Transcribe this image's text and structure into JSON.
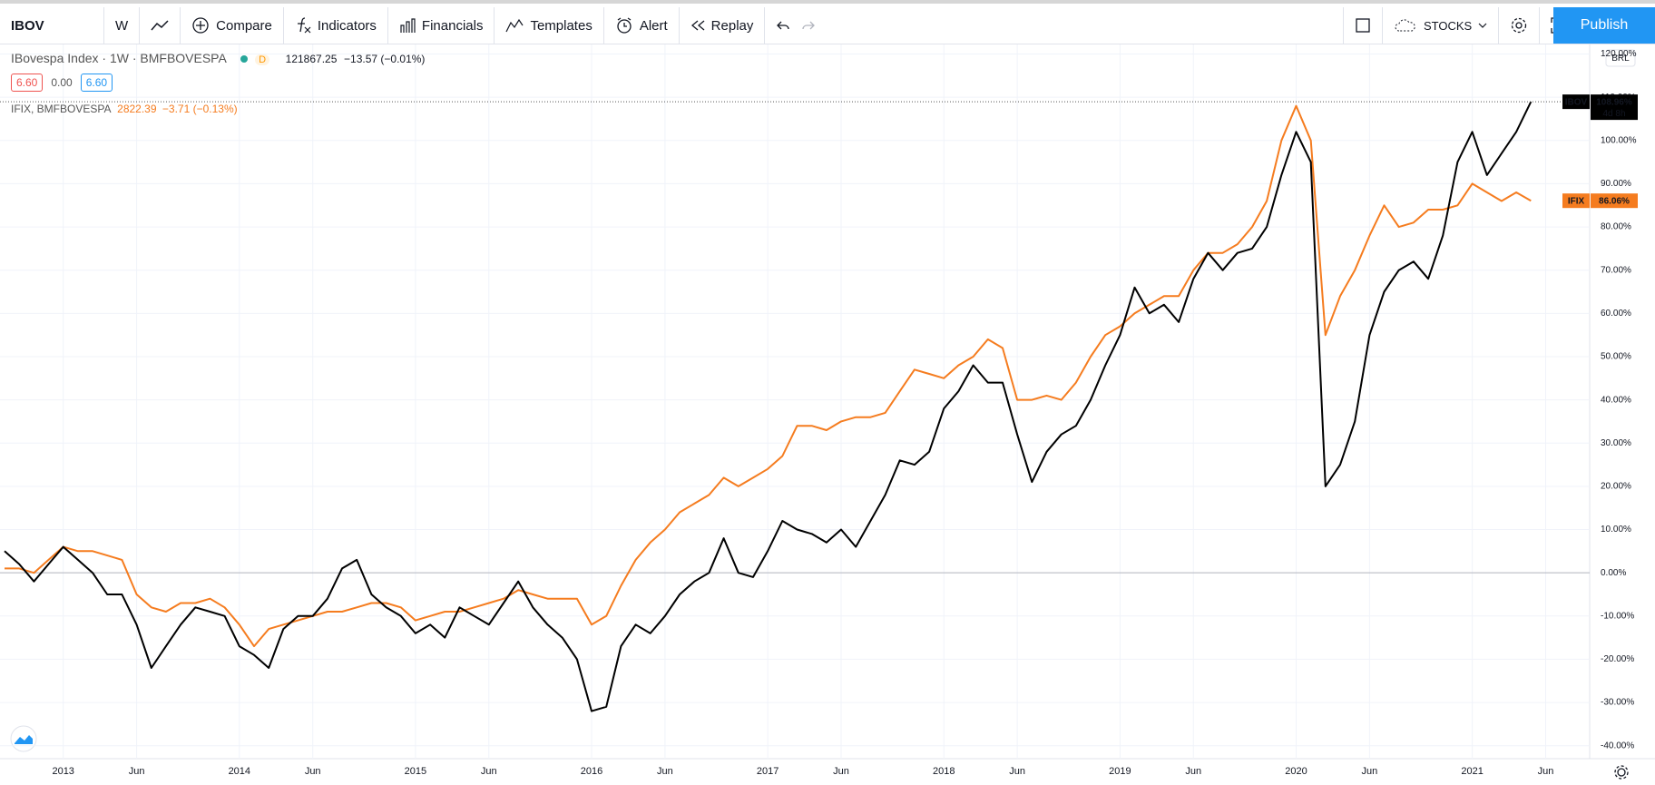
{
  "toolbar": {
    "symbol": "IBOV",
    "interval": "W",
    "compare": "Compare",
    "indicators": "Indicators",
    "financials": "Financials",
    "templates": "Templates",
    "alert": "Alert",
    "replay": "Replay",
    "layout": "STOCKS",
    "publish": "Publish"
  },
  "legend": {
    "main": {
      "name": "IBovespa Index · 1W · BMFBOVESPA",
      "flag": "D",
      "price": "121867.25",
      "change": "−13.57 (−0.01%)",
      "sell": "6.60",
      "spread": "0.00",
      "buy": "6.60"
    },
    "compare": {
      "name": "IFIX, BMFBOVESPA",
      "price": "2822.39",
      "change": "−3.71 (−0.13%)"
    }
  },
  "price_scale": {
    "currency": "BRL",
    "countdown": "4d 8h"
  },
  "chart_data": {
    "type": "line",
    "x": [
      "2012-09",
      "2012-10",
      "2012-11",
      "2012-12",
      "2013-01",
      "2013-02",
      "2013-03",
      "2013-04",
      "2013-05",
      "2013-06",
      "2013-07",
      "2013-08",
      "2013-09",
      "2013-10",
      "2013-11",
      "2013-12",
      "2014-01",
      "2014-02",
      "2014-03",
      "2014-04",
      "2014-05",
      "2014-06",
      "2014-07",
      "2014-08",
      "2014-09",
      "2014-10",
      "2014-11",
      "2014-12",
      "2015-01",
      "2015-02",
      "2015-03",
      "2015-04",
      "2015-05",
      "2015-06",
      "2015-07",
      "2015-08",
      "2015-09",
      "2015-10",
      "2015-11",
      "2015-12",
      "2016-01",
      "2016-02",
      "2016-03",
      "2016-04",
      "2016-05",
      "2016-06",
      "2016-07",
      "2016-08",
      "2016-09",
      "2016-10",
      "2016-11",
      "2016-12",
      "2017-01",
      "2017-02",
      "2017-03",
      "2017-04",
      "2017-05",
      "2017-06",
      "2017-07",
      "2017-08",
      "2017-09",
      "2017-10",
      "2017-11",
      "2017-12",
      "2018-01",
      "2018-02",
      "2018-03",
      "2018-04",
      "2018-05",
      "2018-06",
      "2018-07",
      "2018-08",
      "2018-09",
      "2018-10",
      "2018-11",
      "2018-12",
      "2019-01",
      "2019-02",
      "2019-03",
      "2019-04",
      "2019-05",
      "2019-06",
      "2019-07",
      "2019-08",
      "2019-09",
      "2019-10",
      "2019-11",
      "2019-12",
      "2020-01",
      "2020-02",
      "2020-03",
      "2020-04",
      "2020-05",
      "2020-06",
      "2020-07",
      "2020-08",
      "2020-09",
      "2020-10",
      "2020-11",
      "2020-12",
      "2021-01",
      "2021-02",
      "2021-03",
      "2021-04",
      "2021-05"
    ],
    "xlim": [
      "2012-09",
      "2021-09"
    ],
    "xticks": [
      {
        "value": "2013-01",
        "label": "2013"
      },
      {
        "value": "2013-06",
        "label": "Jun"
      },
      {
        "value": "2014-01",
        "label": "2014"
      },
      {
        "value": "2014-06",
        "label": "Jun"
      },
      {
        "value": "2015-01",
        "label": "2015"
      },
      {
        "value": "2015-06",
        "label": "Jun"
      },
      {
        "value": "2016-01",
        "label": "2016"
      },
      {
        "value": "2016-06",
        "label": "Jun"
      },
      {
        "value": "2017-01",
        "label": "2017"
      },
      {
        "value": "2017-06",
        "label": "Jun"
      },
      {
        "value": "2018-01",
        "label": "2018"
      },
      {
        "value": "2018-06",
        "label": "Jun"
      },
      {
        "value": "2019-01",
        "label": "2019"
      },
      {
        "value": "2019-06",
        "label": "Jun"
      },
      {
        "value": "2020-01",
        "label": "2020"
      },
      {
        "value": "2020-06",
        "label": "Jun"
      },
      {
        "value": "2021-01",
        "label": "2021"
      },
      {
        "value": "2021-06",
        "label": "Jun"
      }
    ],
    "ylim": [
      -43,
      122
    ],
    "yticks": [
      {
        "value": -40,
        "label": "-40.00%"
      },
      {
        "value": -30,
        "label": "-30.00%"
      },
      {
        "value": -20,
        "label": "-20.00%"
      },
      {
        "value": -10,
        "label": "-10.00%"
      },
      {
        "value": 0,
        "label": "0.00%"
      },
      {
        "value": 10,
        "label": "10.00%"
      },
      {
        "value": 20,
        "label": "20.00%"
      },
      {
        "value": 30,
        "label": "30.00%"
      },
      {
        "value": 40,
        "label": "40.00%"
      },
      {
        "value": 50,
        "label": "50.00%"
      },
      {
        "value": 60,
        "label": "60.00%"
      },
      {
        "value": 70,
        "label": "70.00%"
      },
      {
        "value": 80,
        "label": "80.00%"
      },
      {
        "value": 90,
        "label": "90.00%"
      },
      {
        "value": 100,
        "label": "100.00%"
      },
      {
        "value": 110,
        "label": "110.00%"
      },
      {
        "value": 120,
        "label": "120.00%"
      }
    ],
    "grid": true,
    "series": [
      {
        "name": "IBOV",
        "color": "#000000",
        "last_label": "108.96%",
        "values": [
          5,
          2,
          -2,
          2,
          6,
          3,
          0,
          -5,
          -5,
          -12,
          -22,
          -17,
          -12,
          -8,
          -9,
          -10,
          -17,
          -19,
          -22,
          -13,
          -10,
          -10,
          -6,
          1,
          3,
          -5,
          -8,
          -10,
          -14,
          -12,
          -15,
          -8,
          -10,
          -12,
          -7,
          -2,
          -8,
          -12,
          -15,
          -20,
          -32,
          -31,
          -17,
          -12,
          -14,
          -10,
          -5,
          -2,
          0,
          8,
          0,
          -1,
          5,
          12,
          10,
          9,
          7,
          10,
          6,
          12,
          18,
          26,
          25,
          28,
          38,
          42,
          48,
          44,
          44,
          32,
          21,
          28,
          32,
          34,
          40,
          48,
          55,
          66,
          60,
          62,
          58,
          68,
          74,
          70,
          74,
          75,
          80,
          92,
          102,
          95,
          20,
          25,
          35,
          55,
          65,
          70,
          72,
          68,
          78,
          95,
          102,
          92,
          97,
          102,
          108.96
        ]
      },
      {
        "name": "IFIX",
        "color": "#f57c1f",
        "last_label": "86.06%",
        "values": [
          1,
          1,
          0,
          3,
          6,
          5,
          5,
          4,
          3,
          -5,
          -8,
          -9,
          -7,
          -7,
          -6,
          -8,
          -12,
          -17,
          -13,
          -12,
          -11,
          -10,
          -9,
          -9,
          -8,
          -7,
          -7,
          -8,
          -11,
          -10,
          -9,
          -9,
          -8,
          -7,
          -6,
          -4,
          -5,
          -6,
          -6,
          -6,
          -12,
          -10,
          -3,
          3,
          7,
          10,
          14,
          16,
          18,
          22,
          20,
          22,
          24,
          27,
          34,
          34,
          33,
          35,
          36,
          36,
          37,
          42,
          47,
          46,
          45,
          48,
          50,
          54,
          52,
          40,
          40,
          41,
          40,
          44,
          50,
          55,
          57,
          60,
          62,
          64,
          64,
          70,
          74,
          74,
          76,
          80,
          86,
          100,
          108,
          100,
          55,
          64,
          70,
          78,
          85,
          80,
          81,
          84,
          84,
          85,
          90,
          88,
          86,
          88,
          86.06
        ]
      }
    ]
  }
}
